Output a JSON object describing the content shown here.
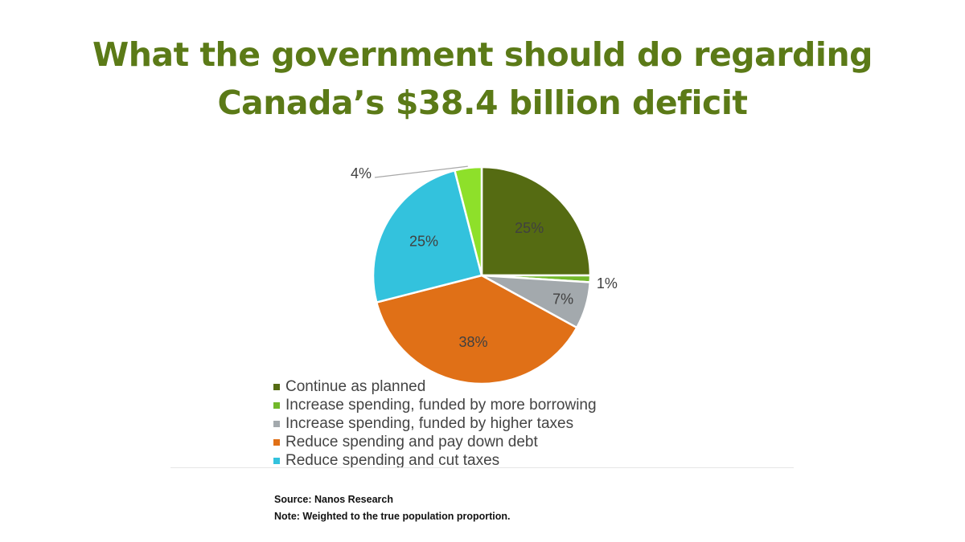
{
  "title": {
    "line1": "What the government should do regarding",
    "line2": "Canada’s $38.4 billion deficit"
  },
  "colors": {
    "title": "#5b7a17",
    "continue": "#556b12",
    "borrowing": "#72b82a",
    "higher_taxes": "#a3a9ad",
    "pay_down_debt": "#e07017",
    "cut_taxes": "#33c2dd",
    "green_small": "#8ee02a"
  },
  "chart_data": {
    "type": "pie",
    "slices": [
      {
        "name": "Continue as planned",
        "value": 25,
        "label": "25%",
        "color": "#556b12"
      },
      {
        "name": "Increase spending, funded by more borrowing",
        "value": 1,
        "label": "1%",
        "color": "#72b82a"
      },
      {
        "name": "Increase spending, funded by higher taxes",
        "value": 7,
        "label": "7%",
        "color": "#a3a9ad"
      },
      {
        "name": "Reduce spending and pay down debt",
        "value": 38,
        "label": "38%",
        "color": "#e07017"
      },
      {
        "name": "Reduce spending and cut taxes",
        "value": 25,
        "label": "25%",
        "color": "#33c2dd"
      },
      {
        "name": "",
        "value": 4,
        "label": "4%",
        "color": "#8ee02a"
      }
    ],
    "legend": [
      {
        "label": "Continue as planned",
        "color": "#556b12"
      },
      {
        "label": "Increase spending, funded by more borrowing",
        "color": "#72b82a"
      },
      {
        "label": "Increase spending, funded by higher taxes",
        "color": "#a3a9ad"
      },
      {
        "label": "Reduce spending and pay down debt",
        "color": "#e07017"
      },
      {
        "label": "Reduce spending and cut taxes",
        "color": "#33c2dd"
      }
    ],
    "legend_position": "bottom-left"
  },
  "footer": {
    "source": "Source: Nanos Research",
    "note": "Note: Weighted to the true population proportion."
  }
}
